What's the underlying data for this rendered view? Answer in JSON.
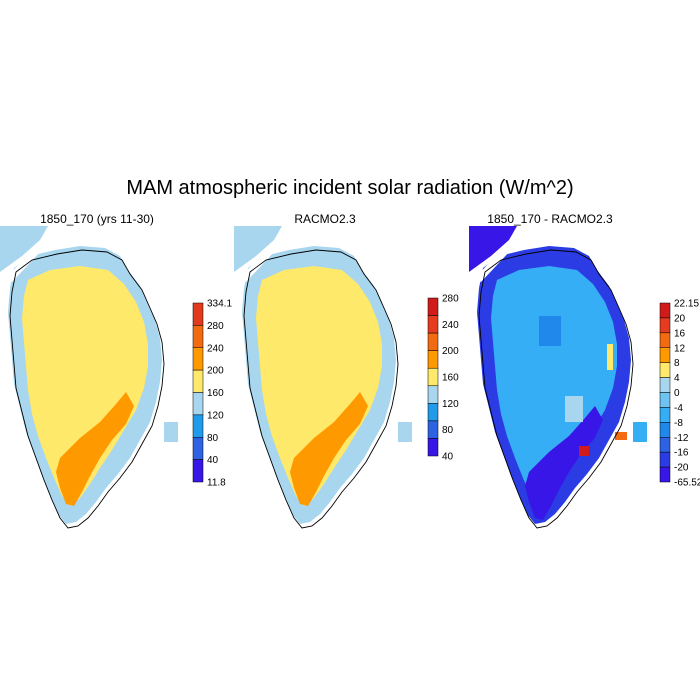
{
  "title": "MAM atmospheric incident solar radiation (W/m^2)",
  "chart_data": [
    {
      "type": "heatmap",
      "title": "1850_170 (yrs 11-30)",
      "region": "Greenland",
      "colorbar": {
        "labels": [
          "334.1",
          "280",
          "240",
          "200",
          "160",
          "120",
          "80",
          "40",
          "11.8"
        ],
        "colors": [
          "#e23a1f",
          "#f26b10",
          "#ff9900",
          "#ffe96b",
          "#a8d6ee",
          "#1f9bea",
          "#2d63e2",
          "#3816e8"
        ]
      },
      "dominant_values": {
        "north_and_central": "160-200",
        "south_interior": "200-240",
        "coastal_margin": "120-160"
      }
    },
    {
      "type": "heatmap",
      "title": "RACMO2.3",
      "region": "Greenland",
      "colorbar": {
        "labels": [
          "280",
          "240",
          "200",
          "160",
          "120",
          "80",
          "40"
        ],
        "colors": [
          "#d11a1a",
          "#e63b1f",
          "#f26b10",
          "#ff9900",
          "#ffe96b",
          "#a8d6ee",
          "#1f9bea",
          "#2d63e2",
          "#3816e8"
        ]
      },
      "dominant_values": {
        "north_and_central": "160-200",
        "south_interior": "200-240",
        "coastal_margin": "120-160"
      }
    },
    {
      "type": "heatmap",
      "title": "1850_170 - RACMO2.3",
      "region": "Greenland",
      "colorbar": {
        "labels": [
          "22.15",
          "20",
          "16",
          "12",
          "8",
          "4",
          "0",
          "-4",
          "-8",
          "-12",
          "-16",
          "-20",
          "-65.52"
        ],
        "colors": [
          "#d11a1a",
          "#e63b1f",
          "#f26b10",
          "#ff9900",
          "#ffe96b",
          "#a8d6ee",
          "#6fc3f0",
          "#35aef5",
          "#1f88ea",
          "#2d63e2",
          "#2c3ce4",
          "#3816e8"
        ]
      },
      "dominant_values": {
        "interior": "-8 to -4",
        "southern_margin": "-20 to -65.52",
        "east_coast_spots": "4 to 20"
      }
    }
  ]
}
